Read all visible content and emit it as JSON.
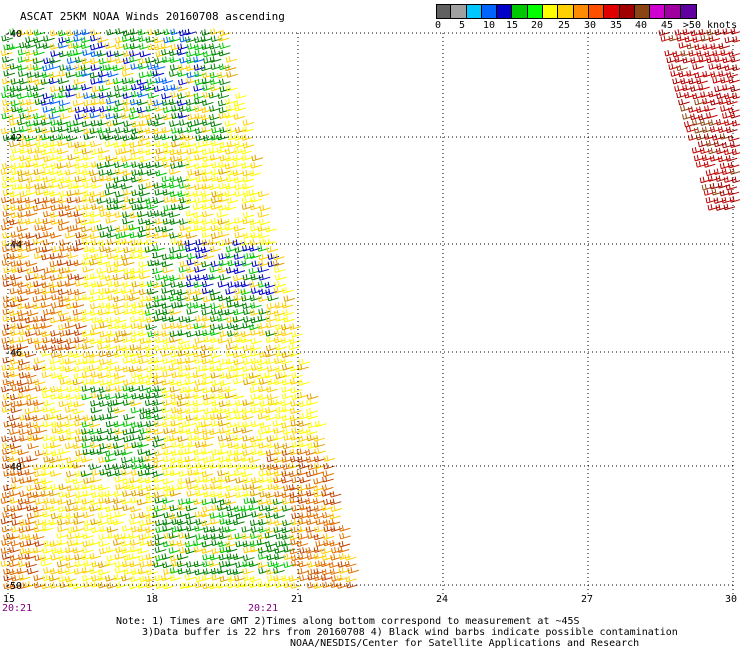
{
  "title": "ASCAT 25KM NOAA Winds 20160708 ascending",
  "colorbar": {
    "colors": [
      "#606060",
      "#a0a0a0",
      "#00c8ff",
      "#0064ff",
      "#0000c8",
      "#00c800",
      "#00ff00",
      "#ffff00",
      "#ffd000",
      "#ff8c00",
      "#ff5000",
      "#e00000",
      "#a00000",
      "#8b4513",
      "#d000d0",
      "#a000a0",
      "#6000a0"
    ],
    "labels": [
      "0",
      "5",
      "10",
      "15",
      "20",
      "25",
      "30",
      "35",
      "40",
      "45",
      ">50 knots"
    ]
  },
  "map": {
    "lat_labels": [
      "-40",
      "-42",
      "-44",
      "-46",
      "-48",
      "-50"
    ],
    "lon_labels": [
      "15",
      "18",
      "21",
      "24",
      "27",
      "30"
    ],
    "time_labels": [
      "20:21",
      "20:21"
    ]
  },
  "notes": [
    "Note: 1) Times are GMT 2)Times along bottom correspond to measurement at ~45S",
    "3)Data buffer is 22 hrs from 20160708 4) Black wind barbs indicate possible contamination",
    "NOAA/NESDIS/Center for Satellite Applications and Research"
  ]
}
